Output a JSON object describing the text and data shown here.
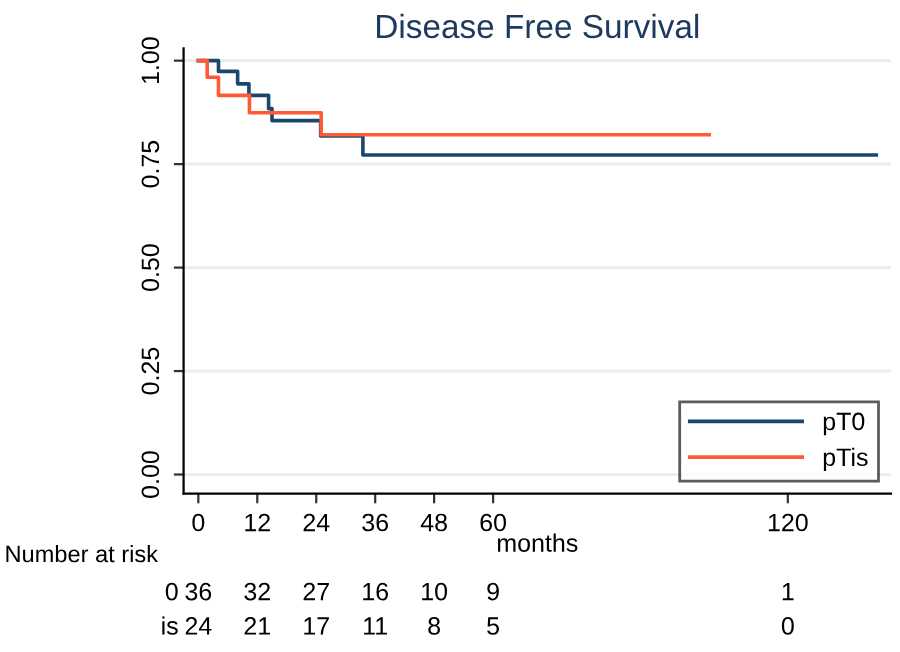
{
  "chart_data": {
    "type": "step",
    "title": "Disease Free Survival",
    "xlabel": "months",
    "series": [
      {
        "name": "pT0",
        "color": "#1a476f",
        "x": [
          0,
          4.1,
          8.0,
          10.3,
          14.3,
          15,
          24.9,
          33.5,
          138
        ],
        "values": [
          1.0,
          0.974,
          0.944,
          0.916,
          0.884,
          0.855,
          0.818,
          0.772,
          0.772
        ]
      },
      {
        "name": "pTis",
        "color": "#ff5a36",
        "x": [
          0,
          1.8,
          4.1,
          10.4,
          25,
          104
        ],
        "values": [
          1.0,
          0.96,
          0.916,
          0.874,
          0.821,
          0.821
        ]
      }
    ],
    "xlim": [
      -3,
      141
    ],
    "xticks": [
      0,
      12,
      24,
      36,
      48,
      60,
      120
    ],
    "ylim": [
      -0.046,
      1.03
    ],
    "yticks": [
      {
        "value": 0,
        "label": "0.00"
      },
      {
        "value": 0.25,
        "label": "0.25"
      },
      {
        "value": 0.5,
        "label": "0.50"
      },
      {
        "value": 0.75,
        "label": "0.75"
      },
      {
        "value": 1,
        "label": "1.00"
      }
    ],
    "grid": "y",
    "legend": "bottom right",
    "line_style": "solid",
    "marker": "none",
    "annotations": [
      "Number at risk",
      "0 36 32 27 16 10 9 1",
      "is 24 21 17 11 8 5 0"
    ]
  }
}
